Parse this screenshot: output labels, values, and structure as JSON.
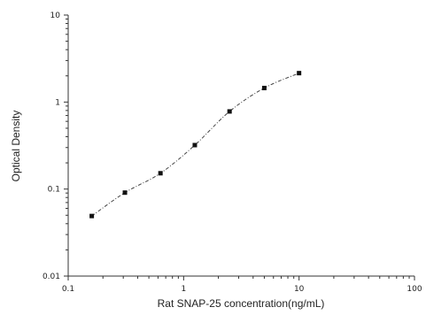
{
  "chart_data": {
    "type": "scatter",
    "xlabel": "Rat SNAP-25 concentration(ng/mL)",
    "ylabel": "Optical Density",
    "x_scale": "log",
    "y_scale": "log",
    "xlim": [
      0.1,
      100
    ],
    "ylim": [
      0.01,
      10
    ],
    "x_ticks": [
      0.1,
      1,
      10,
      100
    ],
    "x_tick_labels": [
      "0.1",
      "1",
      "10",
      "100"
    ],
    "y_ticks": [
      0.01,
      0.1,
      1,
      10
    ],
    "y_tick_labels": [
      "0.01",
      "0.1",
      "1",
      "10"
    ],
    "grid": false,
    "legend": "none",
    "fit_line": "dashed",
    "marker": "square",
    "series": [
      {
        "x": [
          0.16,
          0.31,
          0.63,
          1.25,
          2.5,
          5,
          10
        ],
        "y": [
          0.049,
          0.091,
          0.152,
          0.32,
          0.78,
          1.45,
          2.15
        ]
      }
    ]
  }
}
